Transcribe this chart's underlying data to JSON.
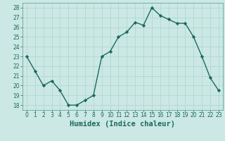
{
  "x": [
    0,
    1,
    2,
    3,
    4,
    5,
    6,
    7,
    8,
    9,
    10,
    11,
    12,
    13,
    14,
    15,
    16,
    17,
    18,
    19,
    20,
    21,
    22,
    23
  ],
  "y": [
    23,
    21.5,
    20.0,
    20.5,
    19.5,
    18.0,
    18.0,
    18.5,
    19.0,
    23.0,
    23.5,
    25.0,
    25.5,
    26.5,
    26.2,
    28.0,
    27.2,
    26.8,
    26.4,
    26.4,
    25.0,
    23.0,
    20.8,
    19.5
  ],
  "line_color": "#1a6b5a",
  "marker": "D",
  "markersize": 2.2,
  "linewidth": 1.0,
  "bg_color": "#cce8e4",
  "grid_color": "#b0d8d2",
  "xlabel": "Humidex (Indice chaleur)",
  "xlim": [
    -0.5,
    23.5
  ],
  "ylim": [
    17.5,
    28.5
  ],
  "yticks": [
    18,
    19,
    20,
    21,
    22,
    23,
    24,
    25,
    26,
    27,
    28
  ],
  "xticks": [
    0,
    1,
    2,
    3,
    4,
    5,
    6,
    7,
    8,
    9,
    10,
    11,
    12,
    13,
    14,
    15,
    16,
    17,
    18,
    19,
    20,
    21,
    22,
    23
  ],
  "tick_fontsize": 5.5,
  "xlabel_fontsize": 7.5,
  "spine_color": "#4a9a8a"
}
